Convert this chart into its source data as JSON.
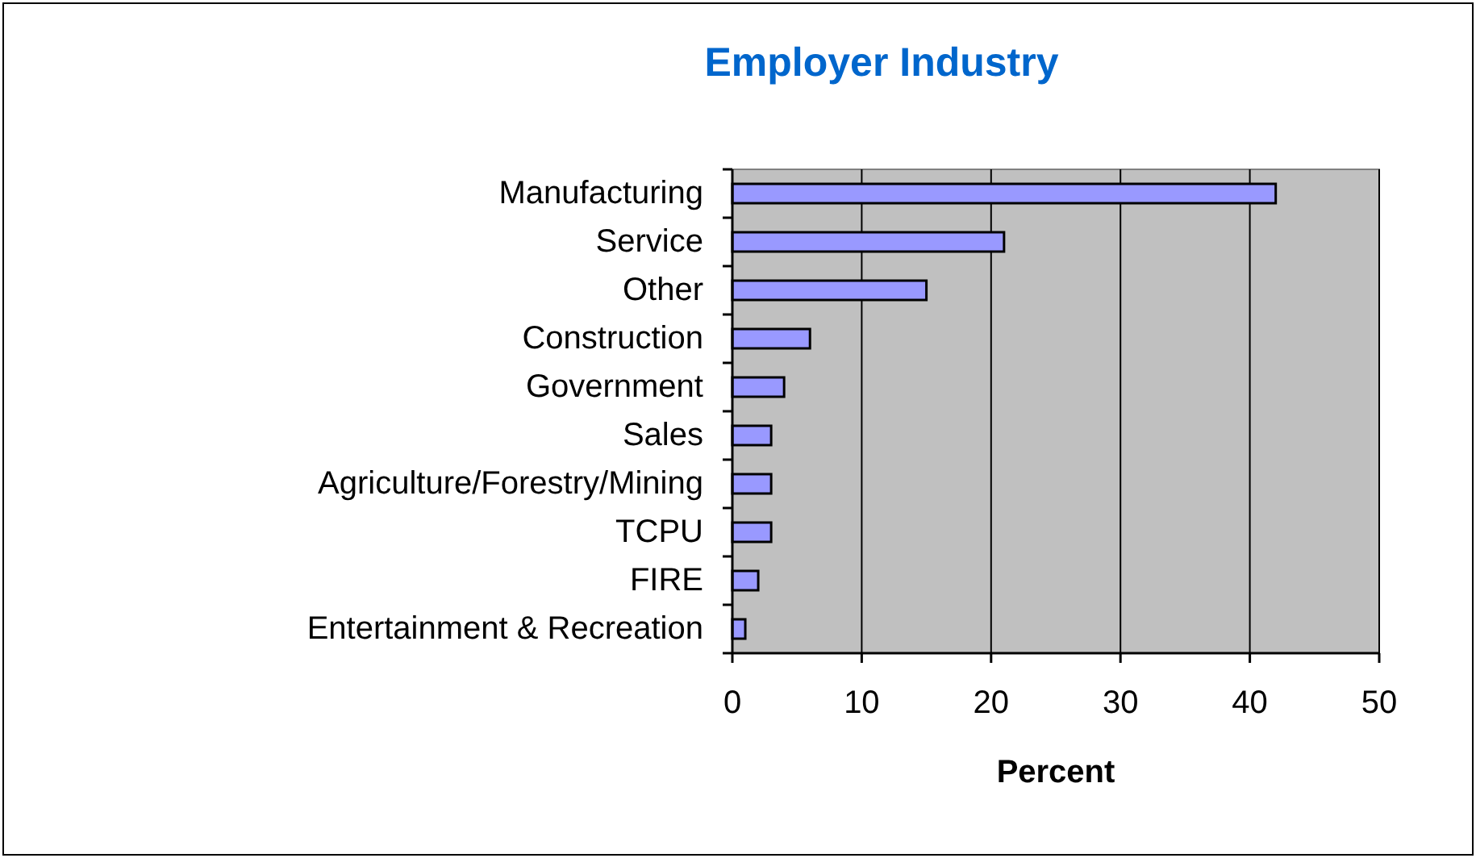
{
  "chart_data": {
    "type": "bar",
    "orientation": "horizontal",
    "title": "Employer Industry",
    "xlabel": "Percent",
    "categories": [
      "Manufacturing",
      "Service",
      "Other",
      "Construction",
      "Government",
      "Sales",
      "Agriculture/Forestry/Mining",
      "TCPU",
      "FIRE",
      "Entertainment & Recreation"
    ],
    "values": [
      42,
      21,
      15,
      6,
      4,
      3,
      3,
      3,
      2,
      1
    ],
    "color": "#9999ff",
    "xlim": [
      0,
      50
    ],
    "xticks": [
      0,
      10,
      20,
      30,
      40,
      50
    ],
    "grid": "x"
  }
}
